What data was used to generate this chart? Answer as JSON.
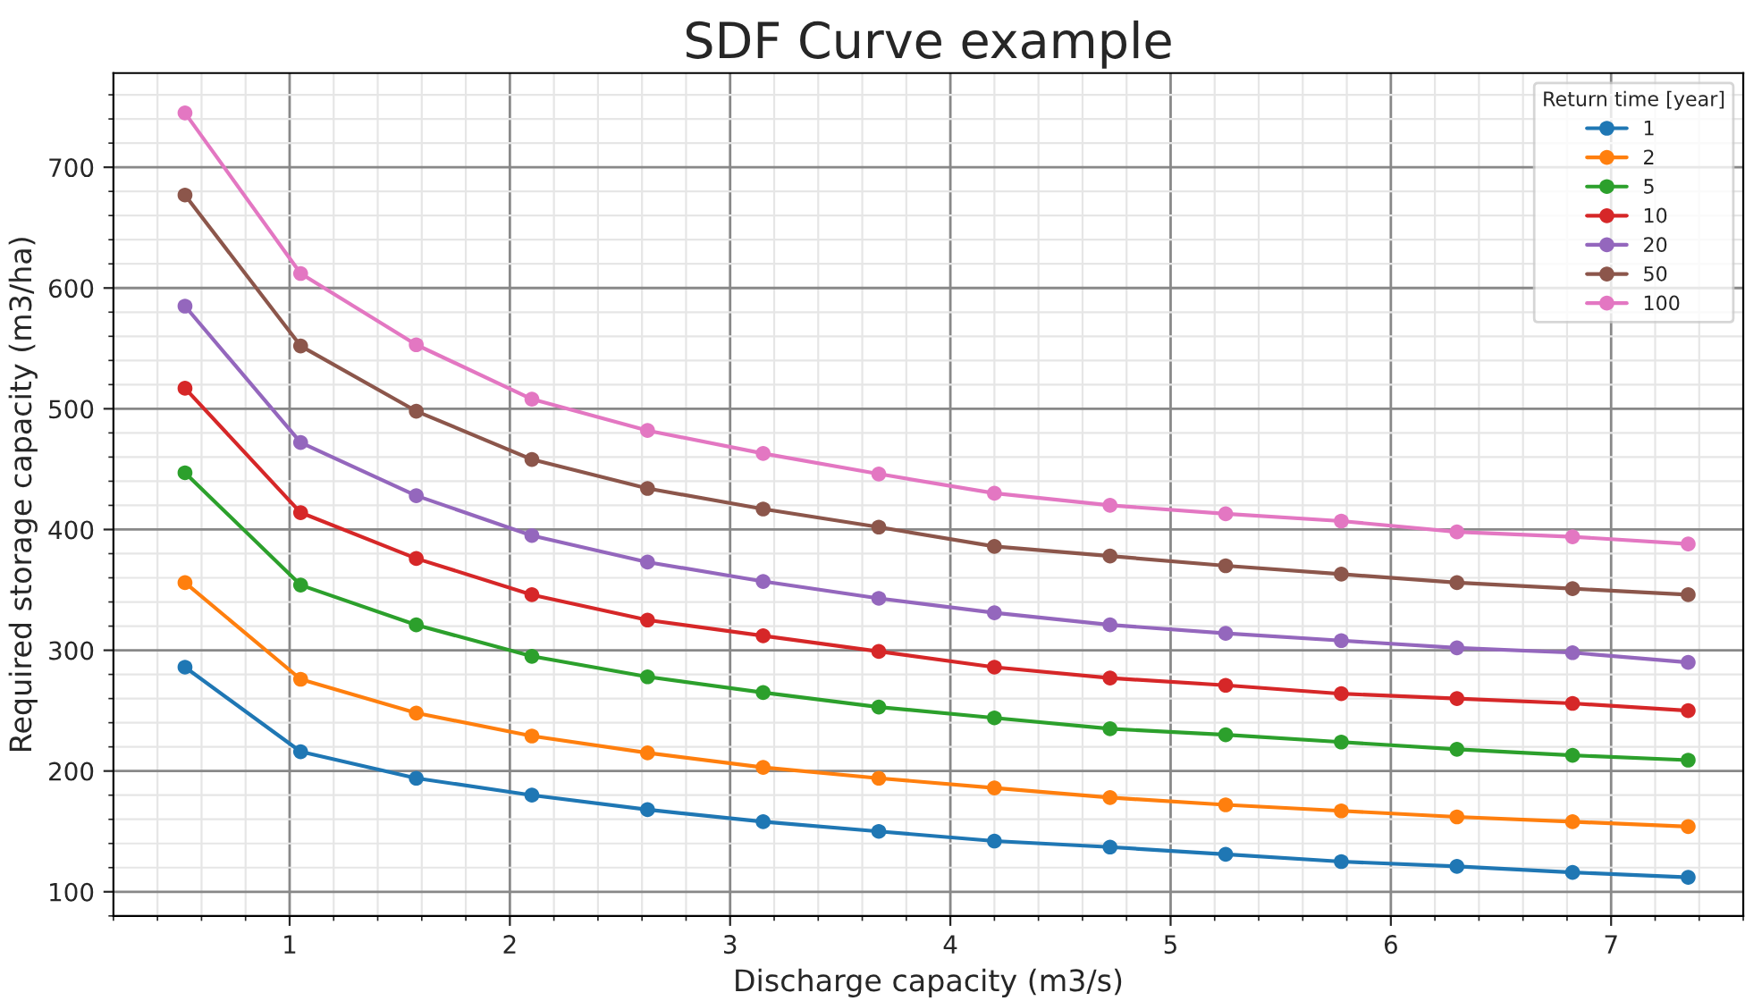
{
  "chart_data": {
    "type": "line",
    "title": "SDF Curve example",
    "xlabel": "Discharge capacity (m3/s)",
    "ylabel": "Required storage capacity (m3/ha)",
    "legend_title": "Return time [year]",
    "legend": "top right",
    "grid": true,
    "marker": "circle",
    "line_style": "solid",
    "x": [
      0.525,
      1.05,
      1.575,
      2.1,
      2.625,
      3.15,
      3.675,
      4.2,
      4.725,
      5.25,
      5.775,
      6.3,
      6.825,
      7.35
    ],
    "xlim": [
      0.2,
      7.6
    ],
    "xticks": [
      1,
      2,
      3,
      4,
      5,
      6,
      7
    ],
    "ylim": [
      80,
      778
    ],
    "yticks": [
      100,
      200,
      300,
      400,
      500,
      600,
      700
    ],
    "series": [
      {
        "name": "1",
        "color": "#1f77b4",
        "values": [
          286,
          216,
          194,
          180,
          168,
          158,
          150,
          142,
          137,
          131,
          125,
          121,
          116,
          112
        ]
      },
      {
        "name": "2",
        "color": "#ff7f0e",
        "values": [
          356,
          276,
          248,
          229,
          215,
          203,
          194,
          186,
          178,
          172,
          167,
          162,
          158,
          154
        ]
      },
      {
        "name": "5",
        "color": "#2ca02c",
        "values": [
          447,
          354,
          321,
          295,
          278,
          265,
          253,
          244,
          235,
          230,
          224,
          218,
          213,
          209
        ]
      },
      {
        "name": "10",
        "color": "#d62728",
        "values": [
          517,
          414,
          376,
          346,
          325,
          312,
          299,
          286,
          277,
          271,
          264,
          260,
          256,
          250
        ]
      },
      {
        "name": "20",
        "color": "#9467bd",
        "values": [
          585,
          472,
          428,
          395,
          373,
          357,
          343,
          331,
          321,
          314,
          308,
          302,
          298,
          290
        ]
      },
      {
        "name": "50",
        "color": "#8c564b",
        "values": [
          677,
          552,
          498,
          458,
          434,
          417,
          402,
          386,
          378,
          370,
          363,
          356,
          351,
          346
        ]
      },
      {
        "name": "100",
        "color": "#e377c2",
        "values": [
          745,
          612,
          553,
          508,
          482,
          463,
          446,
          430,
          420,
          413,
          407,
          398,
          394,
          388
        ]
      }
    ]
  }
}
